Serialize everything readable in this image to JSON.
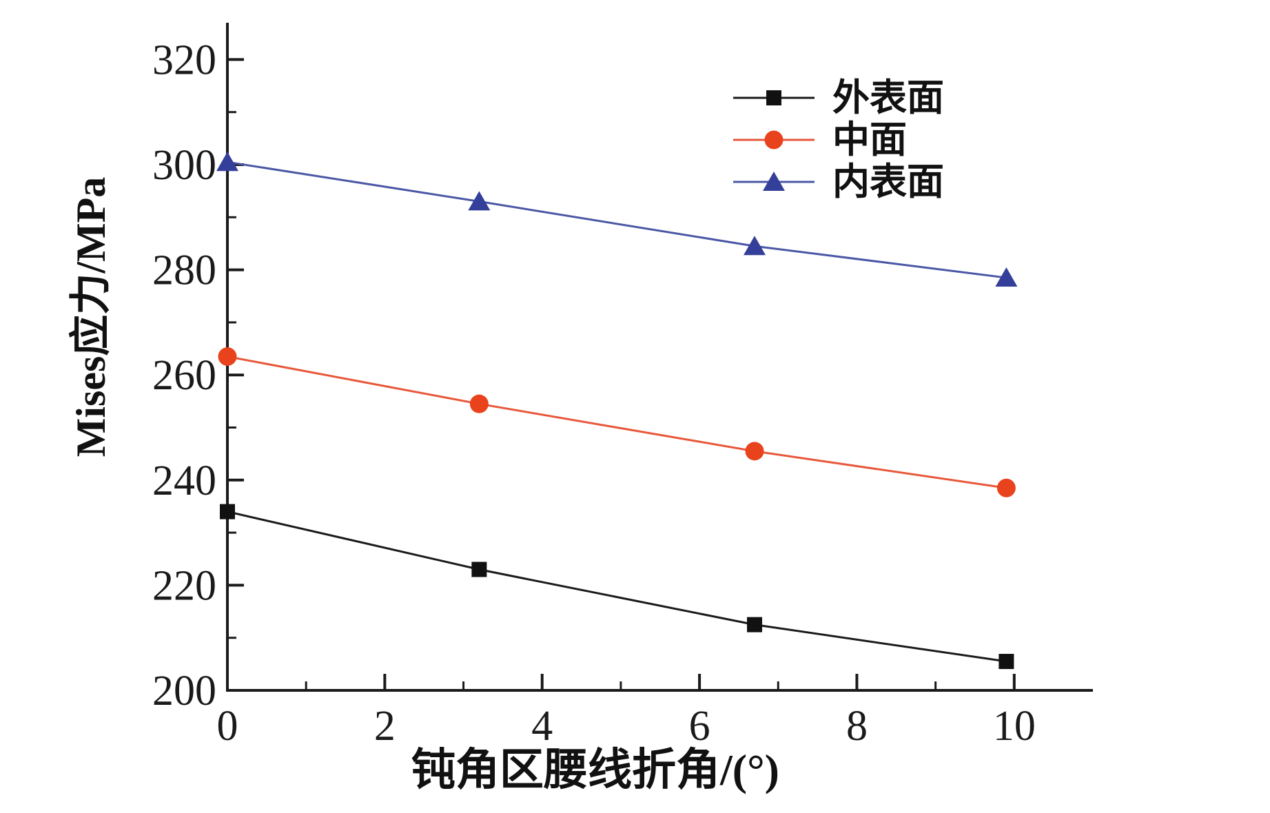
{
  "figure": {
    "background": "#ffffff",
    "axis_color": "#1a1a1a",
    "tick_label_color": "#1a1a1a"
  },
  "chart_data": {
    "type": "line",
    "title": "",
    "xlabel": "钝角区腰线折角/(°)",
    "ylabel": "Mises应力/MPa",
    "xlim": [
      0,
      11
    ],
    "ylim": [
      200,
      327
    ],
    "x_major_ticks": [
      0,
      2,
      4,
      6,
      8,
      10
    ],
    "x_minor_ticks": [
      1,
      3,
      5,
      7,
      9
    ],
    "y_major_ticks": [
      200,
      220,
      240,
      260,
      280,
      300,
      320
    ],
    "y_minor_ticks": [
      210,
      230,
      250,
      270,
      290,
      310
    ],
    "grid": false,
    "legend_position": "upper-right-inside",
    "x": [
      0,
      3.2,
      6.7,
      9.9
    ],
    "series": [
      {
        "name": "外表面",
        "marker": "square",
        "marker_color": "#111111",
        "line_color": "#1a1a1a",
        "values": [
          234,
          223,
          212.5,
          205.5
        ]
      },
      {
        "name": "中面",
        "marker": "circle",
        "marker_color": "#e8431d",
        "line_color": "#e8573a",
        "values": [
          263.5,
          254.5,
          245.5,
          238.5
        ]
      },
      {
        "name": "内表面",
        "marker": "triangle",
        "marker_color": "#333f99",
        "line_color": "#4a57a5",
        "values": [
          300.5,
          293,
          284.5,
          278.5
        ]
      }
    ]
  }
}
